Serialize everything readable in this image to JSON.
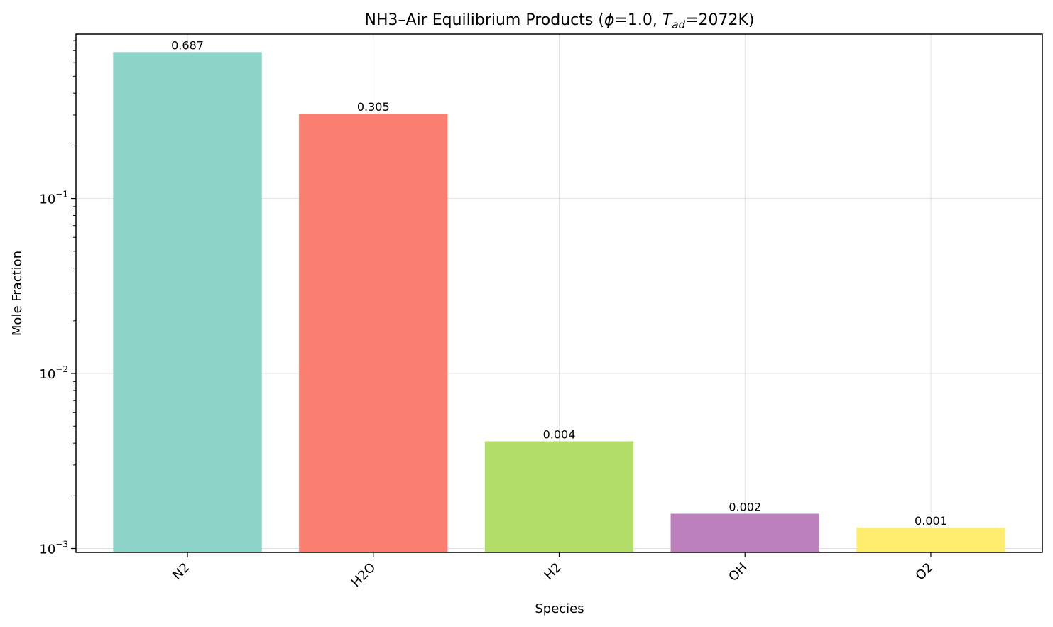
{
  "chart_data": {
    "type": "bar",
    "title": "NH3–Air Equilibrium Products (ϕ=1.0, T_ad=2072K)",
    "title_parts": {
      "prefix": "NH3–Air Equilibrium Products (",
      "phi_symbol": "ϕ",
      "phi_value": "=1.0, ",
      "tad_symbol": "T",
      "tad_subscript": "ad",
      "tad_value": "=2072K)"
    },
    "xlabel": "Species",
    "ylabel": "Mole Fraction",
    "yscale": "log",
    "ylim": [
      0.00095,
      0.87
    ],
    "yticks": [
      {
        "value": 0.001,
        "base": "10",
        "exp": "−3"
      },
      {
        "value": 0.01,
        "base": "10",
        "exp": "−2"
      },
      {
        "value": 0.1,
        "base": "10",
        "exp": "−1"
      }
    ],
    "grid": true,
    "categories": [
      "N2",
      "H2O",
      "H2",
      "OH",
      "O2"
    ],
    "values": [
      0.687,
      0.305,
      0.0041,
      0.00158,
      0.00132
    ],
    "data_labels": [
      "0.687",
      "0.305",
      "0.004",
      "0.002",
      "0.001"
    ],
    "colors": [
      "#8dd3c7",
      "#fb8072",
      "#b3de69",
      "#bc80bd",
      "#ffed6f"
    ]
  }
}
